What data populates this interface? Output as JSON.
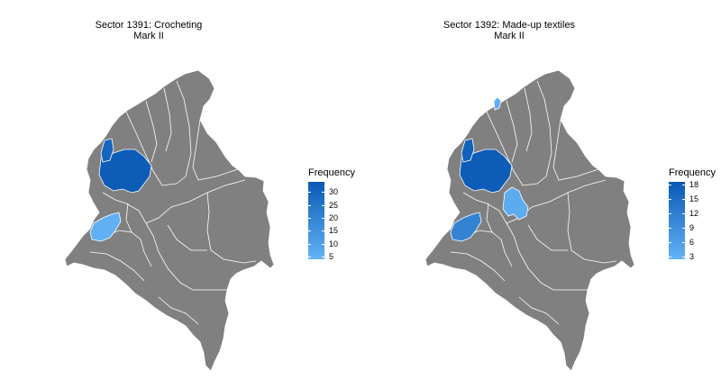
{
  "colors": {
    "background": "#ffffff",
    "land": "#808080",
    "border": "#ffffff",
    "scale_low": "#63b3f5",
    "scale_high": "#0a59b5"
  },
  "panels": [
    {
      "title_line1": "Sector 1391: Crocheting",
      "title_line2": "Mark II",
      "legend": {
        "title": "Frequency",
        "range": [
          4,
          34
        ],
        "ticks": [
          "5",
          "10",
          "15",
          "20",
          "25",
          "30"
        ]
      },
      "highlighted_regions": [
        {
          "region": "antioquia",
          "value": 33
        },
        {
          "region": "choco-north",
          "value": 30
        },
        {
          "region": "valle",
          "value": 5
        }
      ]
    },
    {
      "title_line1": "Sector 1392: Made-up textiles",
      "title_line2": "Mark II",
      "legend": {
        "title": "Frequency",
        "range": [
          2.5,
          18.5
        ],
        "ticks": [
          "3",
          "6",
          "9",
          "12",
          "15",
          "18"
        ]
      },
      "highlighted_regions": [
        {
          "region": "antioquia",
          "value": 18
        },
        {
          "region": "choco-north",
          "value": 17
        },
        {
          "region": "valle",
          "value": 11
        },
        {
          "region": "cundinamarca",
          "value": 4
        },
        {
          "region": "atlantico",
          "value": 3
        }
      ]
    }
  ]
}
